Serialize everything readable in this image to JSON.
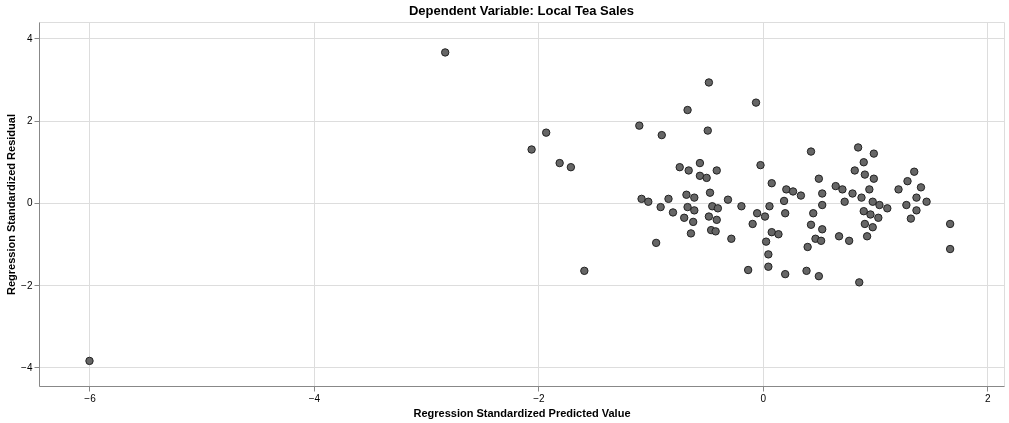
{
  "chart_data": {
    "type": "scatter",
    "title": "Dependent Variable: Local Tea Sales",
    "xlabel": "Regression Standardized Predicted Value",
    "ylabel": "Regression Standardized Residual",
    "xlim": [
      -6.45,
      2.15
    ],
    "ylim": [
      -4.45,
      4.4
    ],
    "xticks": [
      -6,
      -4,
      -2,
      0,
      2
    ],
    "yticks": [
      -4,
      -2,
      0,
      2,
      4
    ],
    "grid": true,
    "marker": "circle",
    "series": [
      {
        "color": "#666666",
        "x": [
          -6.0,
          -2.83,
          -2.06,
          -1.93,
          -1.81,
          -1.71,
          -1.59,
          -0.48,
          -0.06,
          -0.67,
          -1.1,
          -0.9,
          -0.49,
          0.43,
          -0.74,
          -0.66,
          -0.56,
          -0.41,
          -0.56,
          -0.5,
          -0.02,
          0.08,
          0.21,
          0.27,
          0.34,
          0.19,
          -1.08,
          -1.02,
          -0.84,
          -0.68,
          -0.61,
          -0.47,
          -0.31,
          -0.91,
          -0.8,
          -0.67,
          -0.61,
          -0.45,
          -0.4,
          -0.19,
          -0.7,
          -0.62,
          -0.48,
          -0.41,
          0.06,
          -0.05,
          0.02,
          0.2,
          -0.09,
          -0.64,
          -0.46,
          -0.42,
          -0.28,
          -0.95,
          0.08,
          0.14,
          0.03,
          0.05,
          -0.13,
          0.05,
          0.2,
          0.4,
          0.39,
          0.43,
          0.85,
          0.99,
          0.9,
          0.82,
          0.91,
          0.99,
          0.5,
          0.65,
          0.71,
          0.53,
          0.8,
          0.88,
          0.95,
          0.73,
          0.53,
          0.98,
          1.04,
          1.11,
          1.21,
          1.29,
          1.35,
          1.41,
          1.37,
          1.46,
          1.28,
          1.37,
          1.32,
          0.9,
          0.96,
          1.03,
          0.45,
          0.53,
          0.91,
          0.98,
          0.47,
          0.52,
          0.68,
          0.77,
          0.93,
          1.67,
          1.67,
          0.5,
          0.86
        ],
        "values": [
          -3.84,
          3.66,
          1.3,
          1.71,
          0.97,
          0.87,
          -1.65,
          2.93,
          2.44,
          2.26,
          1.88,
          1.65,
          1.76,
          1.25,
          0.87,
          0.79,
          0.97,
          0.79,
          0.66,
          0.61,
          0.92,
          0.48,
          0.33,
          0.28,
          0.18,
          0.05,
          0.1,
          0.03,
          0.1,
          0.2,
          0.13,
          0.25,
          0.08,
          -0.1,
          -0.23,
          -0.1,
          -0.18,
          -0.08,
          -0.13,
          -0.08,
          -0.36,
          -0.46,
          -0.33,
          -0.41,
          -0.08,
          -0.25,
          -0.33,
          -0.25,
          -0.51,
          -0.74,
          -0.66,
          -0.69,
          -0.87,
          -0.97,
          -0.71,
          -0.76,
          -0.94,
          -1.25,
          -1.63,
          -1.55,
          -1.73,
          -1.07,
          -1.65,
          -0.53,
          1.35,
          1.2,
          0.99,
          0.79,
          0.69,
          0.59,
          0.59,
          0.41,
          0.33,
          0.23,
          0.23,
          0.13,
          0.33,
          0.03,
          -0.05,
          0.03,
          -0.05,
          -0.13,
          0.33,
          0.53,
          0.76,
          0.38,
          0.13,
          0.03,
          -0.05,
          -0.18,
          -0.38,
          -0.2,
          -0.28,
          -0.36,
          -0.25,
          -0.64,
          -0.51,
          -0.59,
          -0.87,
          -0.92,
          -0.81,
          -0.92,
          -0.81,
          -0.51,
          -1.12,
          -1.78,
          -1.93
        ]
      }
    ]
  }
}
